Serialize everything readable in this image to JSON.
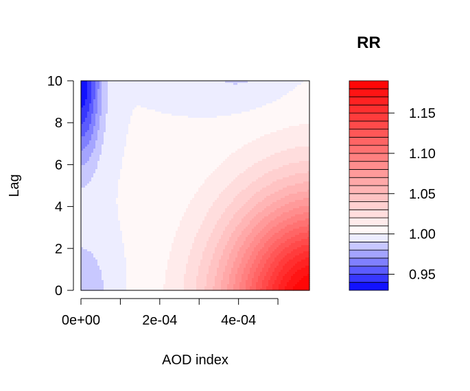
{
  "chart_data": {
    "type": "contour",
    "title": "",
    "xlabel": "AOD index",
    "ylabel": "Lag",
    "xlim": [
      0,
      0.00058
    ],
    "ylim": [
      0,
      10
    ],
    "x_ticks": [
      0,
      0.0001,
      0.0002,
      0.0003,
      0.0004,
      0.0005
    ],
    "x_tick_labels": [
      "0e+00",
      "",
      "2e-04",
      "",
      "4e-04",
      ""
    ],
    "y_ticks": [
      0,
      2,
      4,
      6,
      8,
      10
    ],
    "y_tick_labels": [
      "0",
      "2",
      "4",
      "6",
      "8",
      "10"
    ],
    "legend": {
      "title": "RR",
      "min": 0.93,
      "max": 1.19,
      "step": 0.01,
      "ticks": [
        0.95,
        1.0,
        1.05,
        1.1,
        1.15
      ],
      "tick_labels": [
        "0.95",
        "1.00",
        "1.05",
        "1.10",
        "1.15"
      ],
      "low_color": "#0000ff",
      "mid_color": "#ffffff",
      "high_color": "#ff0000",
      "placement": "right"
    },
    "surface_features": [
      {
        "region": "x near 0, lag near 10",
        "rr": 0.93
      },
      {
        "region": "x near 0, lag near 0",
        "rr": 0.98
      },
      {
        "region": "x near 4e-04, lag near 10",
        "rr": 0.99
      },
      {
        "region": "x near 5.8e-04, lag near 0",
        "rr": 1.19
      }
    ]
  }
}
